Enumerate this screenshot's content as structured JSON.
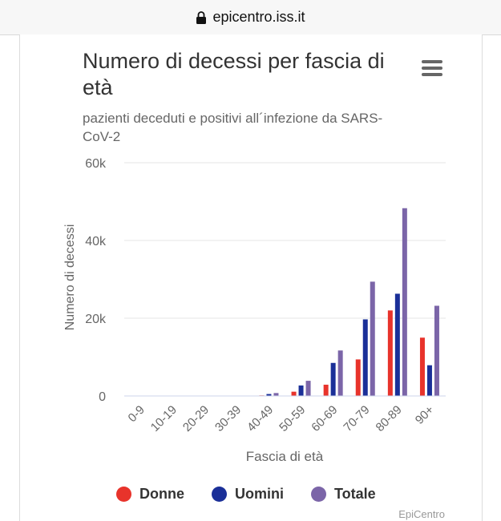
{
  "browser": {
    "url": "epicentro.iss.it"
  },
  "chart_data": {
    "type": "bar",
    "title": "Numero di decessi per fascia di età",
    "subtitle": "pazienti deceduti e positivi all´infezione da SARS-CoV-2",
    "xlabel": "Fascia di età",
    "ylabel": "Numero di decessi",
    "ylim": [
      0,
      60000
    ],
    "yticks": [
      0,
      20000,
      40000,
      60000
    ],
    "ytick_labels": [
      "0",
      "20k",
      "40k",
      "60k"
    ],
    "categories": [
      "0-9",
      "10-19",
      "20-29",
      "30-39",
      "40-49",
      "50-59",
      "60-69",
      "70-79",
      "80-89",
      "90+"
    ],
    "series": [
      {
        "name": "Donne",
        "color": "#e8332b",
        "values": [
          0,
          0,
          0,
          0,
          150,
          1100,
          2900,
          9400,
          22000,
          15000
        ]
      },
      {
        "name": "Uomini",
        "color": "#1a2f98",
        "values": [
          0,
          0,
          0,
          0,
          500,
          2700,
          8500,
          19700,
          26300,
          7900
        ]
      },
      {
        "name": "Totale",
        "color": "#7b65a8",
        "values": [
          0,
          0,
          0,
          0,
          750,
          3900,
          11700,
          29400,
          48300,
          23200
        ]
      }
    ],
    "grid": true,
    "legend_position": "bottom"
  },
  "credits": "EpiCentro",
  "icons": {
    "lock": "lock-icon",
    "menu": "hamburger-menu-icon"
  }
}
